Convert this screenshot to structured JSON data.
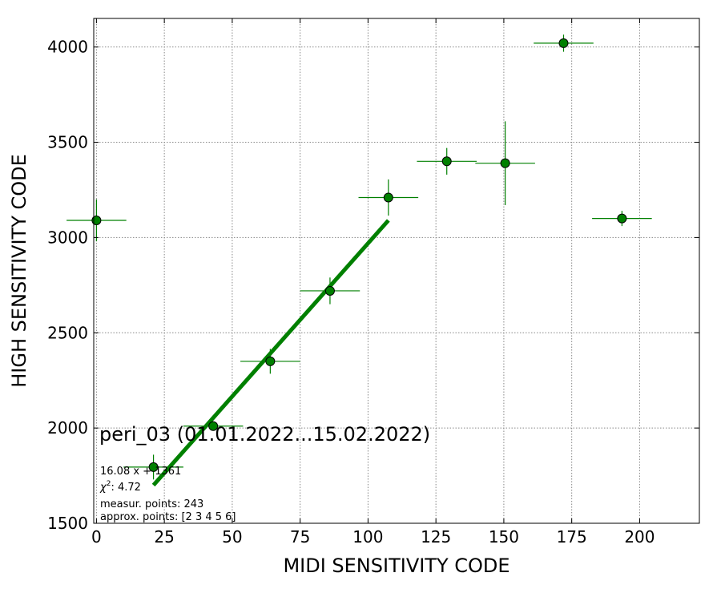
{
  "chart_data": {
    "type": "scatter",
    "xlabel": "MIDI SENSITIVITY CODE",
    "ylabel": "HIGH SENSITIVITY CODE",
    "xlim": [
      -1,
      222
    ],
    "ylim": [
      1500,
      4150
    ],
    "x_ticks": [
      0,
      25,
      50,
      75,
      100,
      125,
      150,
      175,
      200
    ],
    "y_ticks": [
      1500,
      2000,
      2500,
      3000,
      3500,
      4000
    ],
    "grid": true,
    "marker_color": "#008000",
    "fit_line_color": "#008000",
    "points": [
      {
        "x": 0,
        "y": 3090,
        "xerr": 11,
        "yerr": 110
      },
      {
        "x": 21,
        "y": 1795,
        "xerr": 11,
        "yerr": 65
      },
      {
        "x": 43,
        "y": 2010,
        "xerr": 11,
        "yerr": 20
      },
      {
        "x": 64,
        "y": 2350,
        "xerr": 11,
        "yerr": 65
      },
      {
        "x": 86,
        "y": 2720,
        "xerr": 11,
        "yerr": 70
      },
      {
        "x": 107.5,
        "y": 3210,
        "xerr": 11,
        "yerr": 95
      },
      {
        "x": 129,
        "y": 3400,
        "xerr": 11,
        "yerr": 70
      },
      {
        "x": 150.5,
        "y": 3390,
        "xerr": 11,
        "yerr": 220
      },
      {
        "x": 172,
        "y": 4020,
        "xerr": 11,
        "yerr": 45
      },
      {
        "x": 193.5,
        "y": 3100,
        "xerr": 11,
        "yerr": 40
      }
    ],
    "fit_line": {
      "x": [
        21,
        107.5
      ],
      "y": [
        1700,
        3090
      ]
    },
    "annotations": {
      "title": "peri_03 (01.01.2022...15.02.2022)",
      "equation": "16.08 x + 1361",
      "chi2_label": "χ",
      "chi2_sup": "2",
      "chi2_value": ": 4.72",
      "measur_points": "measur. points: 243",
      "approx_points": "approx. points: [2 3 4 5 6]"
    }
  }
}
